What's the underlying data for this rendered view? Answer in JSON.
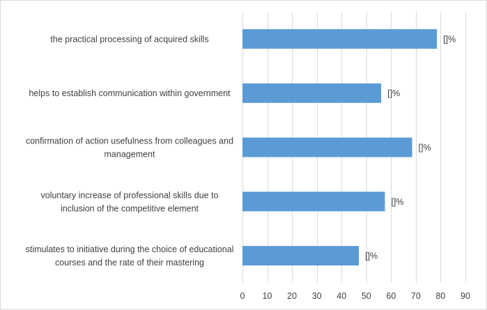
{
  "chart_data": {
    "type": "bar",
    "orientation": "horizontal",
    "title": "",
    "xlabel": "",
    "ylabel": "",
    "xlim": [
      0,
      90
    ],
    "x_ticks": [
      0,
      10,
      20,
      30,
      40,
      50,
      60,
      70,
      80,
      90
    ],
    "grid": "vertical",
    "legend": "none",
    "bar_color": "#5b9bd5",
    "grid_color": "#d9d9d9",
    "data_label_text": "[]%",
    "categories": [
      [
        "the practical processing of acquired skills"
      ],
      [
        "helps to establish communication within government"
      ],
      [
        "confirmation of action usefulness from colleagues and",
        "management"
      ],
      [
        "voluntary increase of professional skills due to",
        "inclusion of the competitive element"
      ],
      [
        "stimulates to initiative during the choice of educational",
        "courses and the rate of their mastering"
      ]
    ],
    "values": [
      78.5,
      56,
      68.5,
      57.5,
      47
    ]
  }
}
